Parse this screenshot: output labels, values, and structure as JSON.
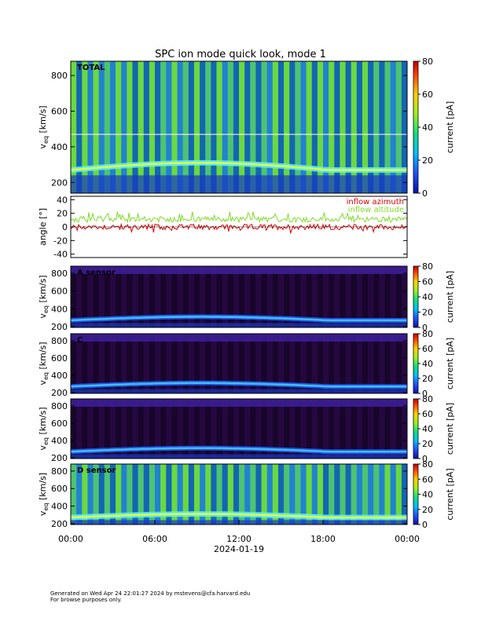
{
  "title": "SPC ion mode quick look, mode 1",
  "footer": {
    "line1": "Generated on Wed Apr 24 22:01:27 2024 by mstevens@cfa.harvard.edu",
    "line2": "For browse purposes only."
  },
  "colors": {
    "azimuth": "#e00000",
    "altitude": "#7fdc2a"
  },
  "chart_data": [
    {
      "type": "heatmap",
      "panel": "total",
      "label": "TOTAL",
      "ylabel": "v_eq [km/s]",
      "ylim": [
        140,
        880
      ],
      "yticks": [
        200,
        400,
        600,
        800
      ],
      "colorbar": {
        "label": "current [pA]",
        "range": [
          0,
          80
        ],
        "ticks": [
          0,
          20,
          40,
          60,
          80
        ]
      },
      "x": {
        "ticks": [
          "00:00",
          "06:00",
          "12:00",
          "18:00",
          "00:00"
        ],
        "xlabel": "2024-01-19"
      }
    },
    {
      "type": "line",
      "panel": "angle",
      "ylabel": "angle [°]",
      "ylim": [
        -45,
        45
      ],
      "yticks": [
        -40,
        -20,
        0,
        20,
        40
      ],
      "series": [
        {
          "name": "inflow azimuth",
          "mean": 0
        },
        {
          "name": "inflow altitude",
          "mean": 11
        }
      ]
    },
    {
      "type": "heatmap",
      "panel": "A",
      "label": "A sensor",
      "ylabel": "v_eq [km/s]",
      "ylim": [
        190,
        880
      ],
      "yticks": [
        200,
        400,
        600,
        800
      ],
      "colorbar": {
        "label": "current [pA]",
        "range": [
          0,
          80
        ],
        "ticks": [
          0,
          20,
          40,
          60,
          80
        ]
      }
    },
    {
      "type": "heatmap",
      "panel": "C",
      "label": "C",
      "ylabel": "v_eq [km/s]",
      "ylim": [
        190,
        880
      ],
      "yticks": [
        200,
        400,
        600,
        800
      ],
      "colorbar": {
        "label": "current [pA]",
        "range": [
          0,
          80
        ],
        "ticks": [
          0,
          20,
          40,
          60,
          80
        ]
      }
    },
    {
      "type": "heatmap",
      "panel": "B",
      "label": "",
      "ylabel": "v_eq [km/s]",
      "ylim": [
        190,
        880
      ],
      "yticks": [
        200,
        400,
        600,
        800
      ],
      "colorbar": {
        "label": "current [pA]",
        "range": [
          0,
          80
        ],
        "ticks": [
          0,
          20,
          40,
          60,
          80
        ]
      }
    },
    {
      "type": "heatmap",
      "panel": "D",
      "label": "D sensor",
      "ylabel": "v_eq [km/s]",
      "ylim": [
        190,
        880
      ],
      "yticks": [
        200,
        400,
        600,
        800
      ],
      "colorbar": {
        "label": "current [pA]",
        "range": [
          0,
          80
        ],
        "ticks": [
          0,
          20,
          40,
          60,
          80
        ]
      }
    }
  ]
}
